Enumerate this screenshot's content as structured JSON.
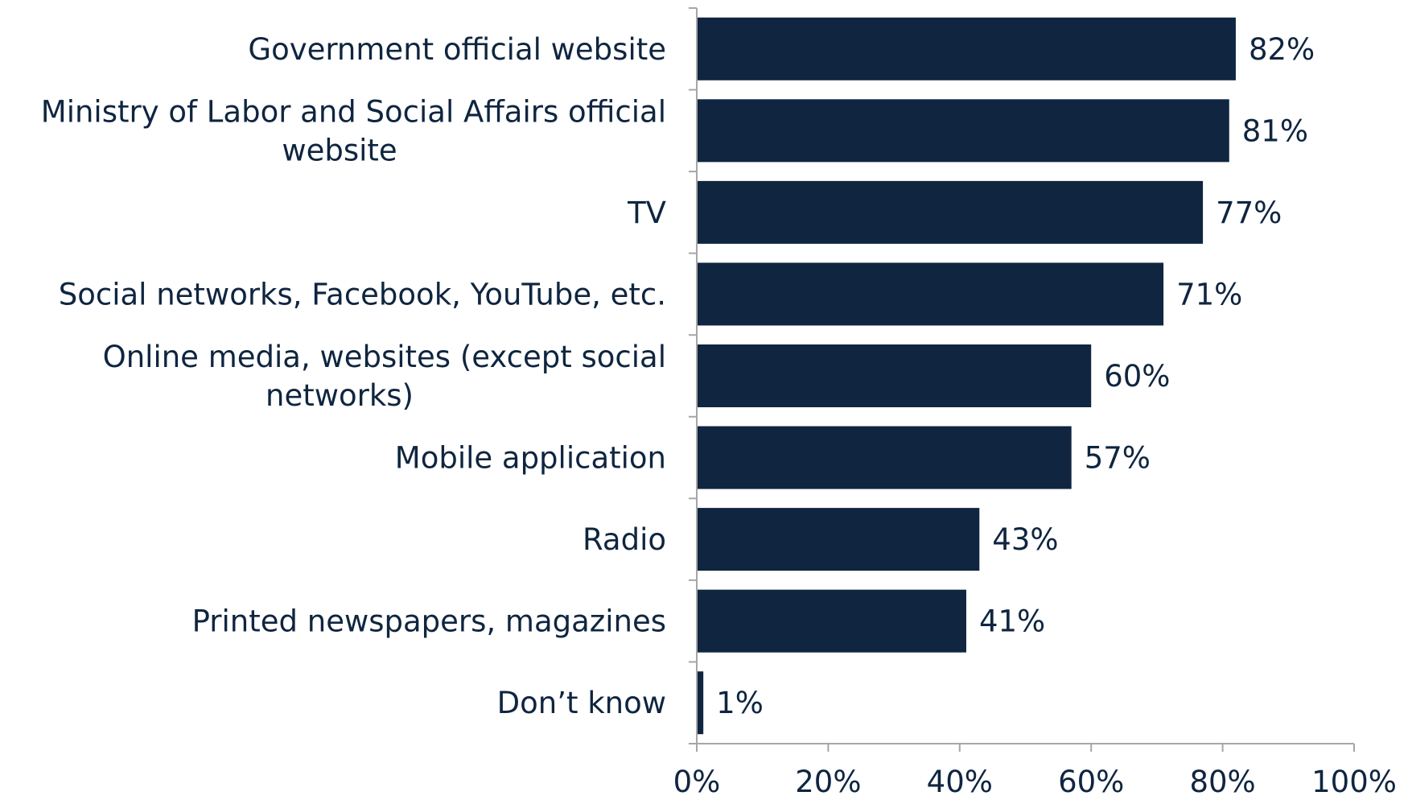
{
  "chart_data": {
    "type": "bar",
    "orientation": "horizontal",
    "categories": [
      "Government official website",
      "Ministry of Labor and Social Affairs official website",
      "TV",
      "Social networks, Facebook, YouTube, etc.",
      "Online media, websites (except social networks)",
      "Mobile application",
      "Radio",
      "Printed newspapers, magazines",
      "Don’t know"
    ],
    "values": [
      82,
      81,
      77,
      71,
      60,
      57,
      43,
      41,
      1
    ],
    "value_labels": [
      "82%",
      "81%",
      "77%",
      "71%",
      "60%",
      "57%",
      "43%",
      "41%",
      "1%"
    ],
    "xlim": [
      0,
      100
    ],
    "ticks": [
      0,
      20,
      40,
      60,
      80,
      100
    ],
    "tick_labels": [
      "0%",
      "20%",
      "40%",
      "60%",
      "80%",
      "100%"
    ],
    "title": "",
    "xlabel": "",
    "ylabel": "",
    "grid": false,
    "bar_color": "#0f2540",
    "axis_color": "#a6a6a6",
    "text_color": "#0f2540"
  }
}
